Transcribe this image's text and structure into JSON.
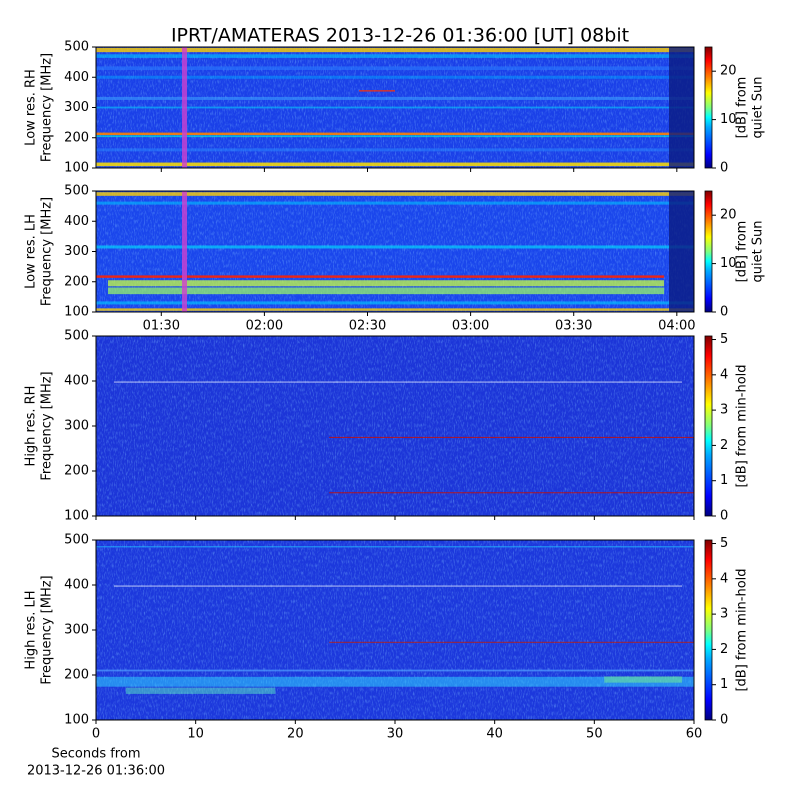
{
  "title": "IPRT/AMATERAS 2013-12-26 01:36:00 [UT]   08bit",
  "chart_data": [
    {
      "type": "heatmap",
      "ylabel": [
        "Low res. RH",
        "Frequency [MHz]"
      ],
      "ylim": [
        100,
        500
      ],
      "yticks": [
        100,
        200,
        300,
        400,
        500
      ],
      "xlim": [
        "01:11",
        "04:05"
      ],
      "colorbar_label": [
        "[dB] from",
        "quiet Sun"
      ],
      "clim": [
        0,
        25
      ],
      "cticks": [
        0,
        10,
        20
      ]
    },
    {
      "type": "heatmap",
      "ylabel": [
        "Low res. LH",
        "Frequency [MHz]"
      ],
      "ylim": [
        100,
        500
      ],
      "yticks": [
        100,
        200,
        300,
        400,
        500
      ],
      "xlim": [
        "01:11",
        "04:05"
      ],
      "xticks": [
        "01:30",
        "02:00",
        "02:30",
        "03:00",
        "03:30",
        "04:00"
      ],
      "colorbar_label": [
        "[dB] from",
        "quiet Sun"
      ],
      "clim": [
        0,
        25
      ],
      "cticks": [
        0,
        10,
        20
      ]
    },
    {
      "type": "heatmap",
      "ylabel": [
        "High res. RH",
        "Frequency [MHz]"
      ],
      "ylim": [
        100,
        500
      ],
      "yticks": [
        100,
        200,
        300,
        400,
        500
      ],
      "xlim": [
        0,
        60
      ],
      "colorbar_label": [
        "[dB] from min-hold"
      ],
      "clim": [
        0,
        5.1
      ],
      "cticks": [
        0,
        1,
        2,
        3,
        4,
        5
      ]
    },
    {
      "type": "heatmap",
      "ylabel": [
        "High res. LH",
        "Frequency [MHz]"
      ],
      "ylim": [
        100,
        500
      ],
      "yticks": [
        100,
        200,
        300,
        400,
        500
      ],
      "xlim": [
        0,
        60
      ],
      "xticks": [
        0,
        10,
        20,
        30,
        40,
        50,
        60
      ],
      "xlabel": [
        "Seconds from",
        "2013-12-26 01:36:00"
      ],
      "colorbar_label": [
        "[dB] from min-hold"
      ],
      "clim": [
        0,
        5.1
      ],
      "cticks": [
        0,
        1,
        2,
        3,
        4,
        5
      ]
    }
  ]
}
